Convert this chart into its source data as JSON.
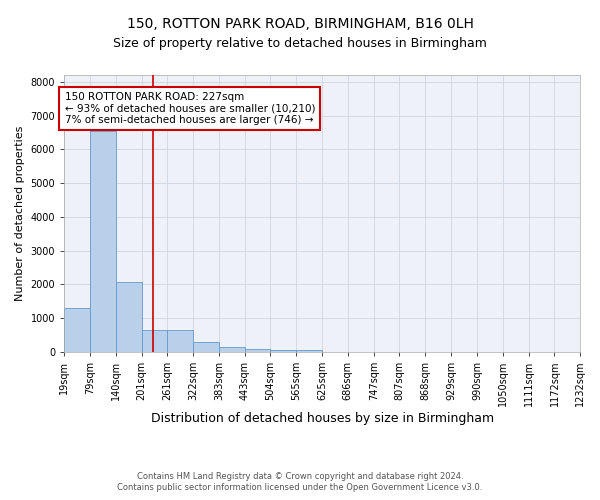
{
  "title1": "150, ROTTON PARK ROAD, BIRMINGHAM, B16 0LH",
  "title2": "Size of property relative to detached houses in Birmingham",
  "xlabel": "Distribution of detached houses by size in Birmingham",
  "ylabel": "Number of detached properties",
  "footer1": "Contains HM Land Registry data © Crown copyright and database right 2024.",
  "footer2": "Contains public sector information licensed under the Open Government Licence v3.0.",
  "bar_edges": [
    19,
    79,
    140,
    201,
    261,
    322,
    383,
    443,
    504,
    565,
    625,
    686,
    747,
    807,
    868,
    929,
    990,
    1050,
    1111,
    1172,
    1232
  ],
  "bar_labels": [
    "19sqm",
    "79sqm",
    "140sqm",
    "201sqm",
    "261sqm",
    "322sqm",
    "383sqm",
    "443sqm",
    "504sqm",
    "565sqm",
    "625sqm",
    "686sqm",
    "747sqm",
    "807sqm",
    "868sqm",
    "929sqm",
    "990sqm",
    "1050sqm",
    "1111sqm",
    "1172sqm",
    "1232sqm"
  ],
  "bar_heights": [
    1300,
    6550,
    2080,
    640,
    640,
    285,
    135,
    85,
    55,
    70,
    0,
    0,
    0,
    0,
    0,
    0,
    0,
    0,
    0,
    0
  ],
  "bar_color": "#b8d0ea",
  "bar_edge_color": "#6699cc",
  "vline_x": 227,
  "vline_color": "#cc0000",
  "annotation_text": "150 ROTTON PARK ROAD: 227sqm\n← 93% of detached houses are smaller (10,210)\n7% of semi-detached houses are larger (746) →",
  "annotation_box_color": "#cc0000",
  "ylim": [
    0,
    8200
  ],
  "yticks": [
    0,
    1000,
    2000,
    3000,
    4000,
    5000,
    6000,
    7000,
    8000
  ],
  "grid_color": "#c8d0dc",
  "background_color": "#eef2f8",
  "title1_fontsize": 10,
  "title2_fontsize": 9,
  "xlabel_fontsize": 9,
  "ylabel_fontsize": 8,
  "tick_fontsize": 7,
  "annotation_fontsize": 7.5,
  "footer_fontsize": 6
}
